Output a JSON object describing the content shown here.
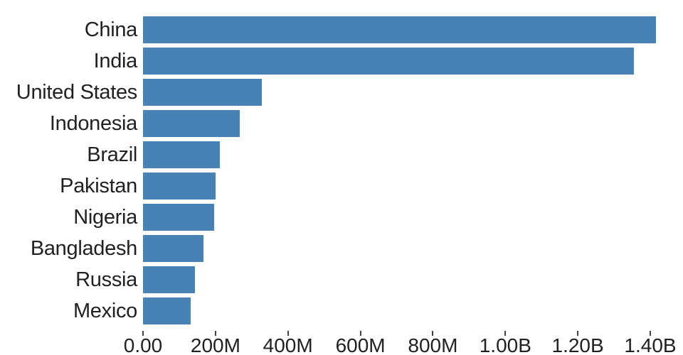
{
  "chart_data": {
    "type": "bar",
    "orientation": "horizontal",
    "title": "",
    "xlabel": "",
    "ylabel": "",
    "grid": false,
    "legend": false,
    "categories": [
      "China",
      "India",
      "United States",
      "Indonesia",
      "Brazil",
      "Pakistan",
      "Nigeria",
      "Bangladesh",
      "Russia",
      "Mexico"
    ],
    "values_millions": [
      1415,
      1354,
      327,
      267,
      211,
      201,
      196,
      166,
      144,
      131
    ],
    "x_axis": {
      "min_millions": 0,
      "max_millions": 1400,
      "ticks": [
        {
          "value_millions": 0,
          "label": "0.00"
        },
        {
          "value_millions": 200,
          "label": "200M"
        },
        {
          "value_millions": 400,
          "label": "400M"
        },
        {
          "value_millions": 600,
          "label": "600M"
        },
        {
          "value_millions": 800,
          "label": "800M"
        },
        {
          "value_millions": 1000,
          "label": "1.00B"
        },
        {
          "value_millions": 1200,
          "label": "1.20B"
        },
        {
          "value_millions": 1400,
          "label": "1.40B"
        }
      ]
    },
    "colors": {
      "bar": "#4682b4",
      "label_text": "#212121",
      "tick_text": "#212121",
      "tick_mark": "#444444",
      "background": "#ffffff"
    }
  }
}
